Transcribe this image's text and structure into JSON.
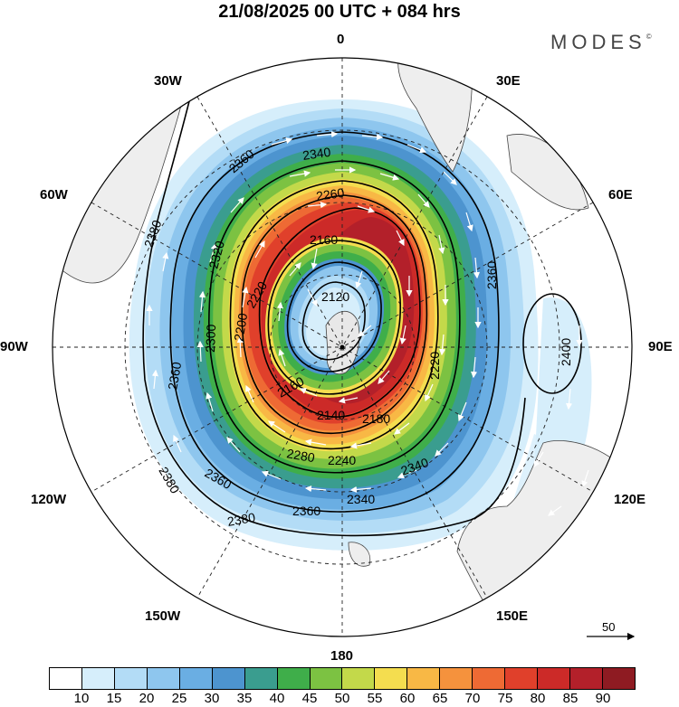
{
  "header": {
    "title": "21/08/2025  00 UTC  + 084 hrs",
    "brand": "MODES",
    "brand_mark": "©"
  },
  "map": {
    "projection": "south-polar-stereographic",
    "longitude_labels": {
      "top": "0",
      "top_right": "30E",
      "right_upper": "60E",
      "right": "90E",
      "right_lower": "120E",
      "bottom_right": "150E",
      "bottom": "180",
      "bottom_left": "150W",
      "left_lower": "120W",
      "left": "90W",
      "left_upper": "60W",
      "top_left": "30W"
    },
    "contour_labels": [
      "2120",
      "2140",
      "2160",
      "2180",
      "2200",
      "2220",
      "2240",
      "2260",
      "2280",
      "2300",
      "2320",
      "2340",
      "2360",
      "2380",
      "2400"
    ],
    "reference_vector": "50"
  },
  "colorbar": {
    "colors": [
      "#ffffff",
      "#d6eefb",
      "#b3dcf6",
      "#8ec6ee",
      "#6aaee3",
      "#4d94cf",
      "#3a9d8f",
      "#3fae4a",
      "#7cc242",
      "#c3d94a",
      "#f4dd4f",
      "#f8b845",
      "#f5923d",
      "#ee6a34",
      "#e0402b",
      "#cc2a28",
      "#b3202a",
      "#8e1b22"
    ],
    "ticks": [
      "10",
      "15",
      "20",
      "25",
      "30",
      "35",
      "40",
      "45",
      "50",
      "55",
      "60",
      "65",
      "70",
      "75",
      "80",
      "85",
      "90"
    ]
  }
}
